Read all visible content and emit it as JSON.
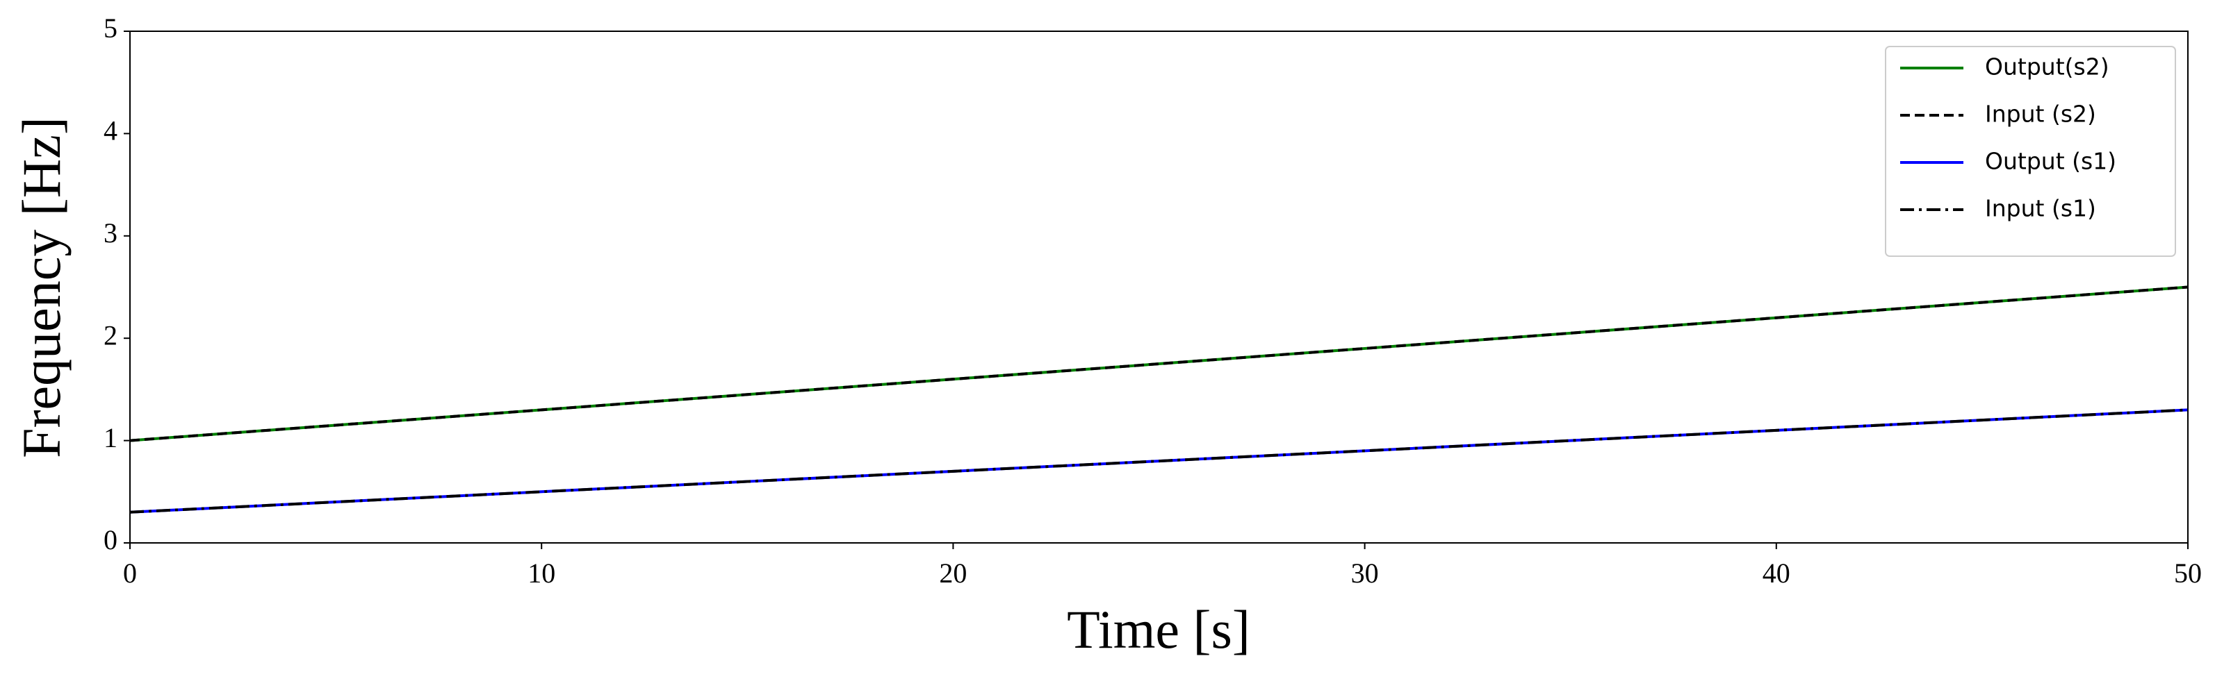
{
  "chart_data": {
    "type": "line",
    "xlabel": "Time [s]",
    "ylabel": "Frequency [Hz]",
    "x": [
      0,
      5,
      10,
      15,
      20,
      25,
      30,
      35,
      40,
      45,
      50
    ],
    "series": [
      {
        "name": "Output(s2)",
        "color": "#008000",
        "linestyle": "solid",
        "values": [
          1.0,
          1.15,
          1.3,
          1.45,
          1.6,
          1.75,
          1.9,
          2.05,
          2.2,
          2.35,
          2.5
        ]
      },
      {
        "name": "Input (s2)",
        "color": "#000000",
        "linestyle": "dashed",
        "values": [
          1.0,
          1.15,
          1.3,
          1.45,
          1.6,
          1.75,
          1.9,
          2.05,
          2.2,
          2.35,
          2.5
        ]
      },
      {
        "name": "Output (s1)",
        "color": "#0000ff",
        "linestyle": "solid",
        "values": [
          0.3,
          0.4,
          0.5,
          0.6,
          0.7,
          0.8,
          0.9,
          1.0,
          1.1,
          1.2,
          1.3
        ]
      },
      {
        "name": "Input (s1)",
        "color": "#000000",
        "linestyle": "dashdot",
        "values": [
          0.3,
          0.4,
          0.5,
          0.6,
          0.7,
          0.8,
          0.9,
          1.0,
          1.1,
          1.2,
          1.3
        ]
      }
    ],
    "xlim": [
      0,
      50
    ],
    "xticks": [
      0,
      10,
      20,
      30,
      40,
      50
    ],
    "ylim": [
      0,
      5
    ],
    "yticks": [
      0,
      1,
      2,
      3,
      4,
      5
    ],
    "grid": false,
    "legend": "upper right"
  }
}
